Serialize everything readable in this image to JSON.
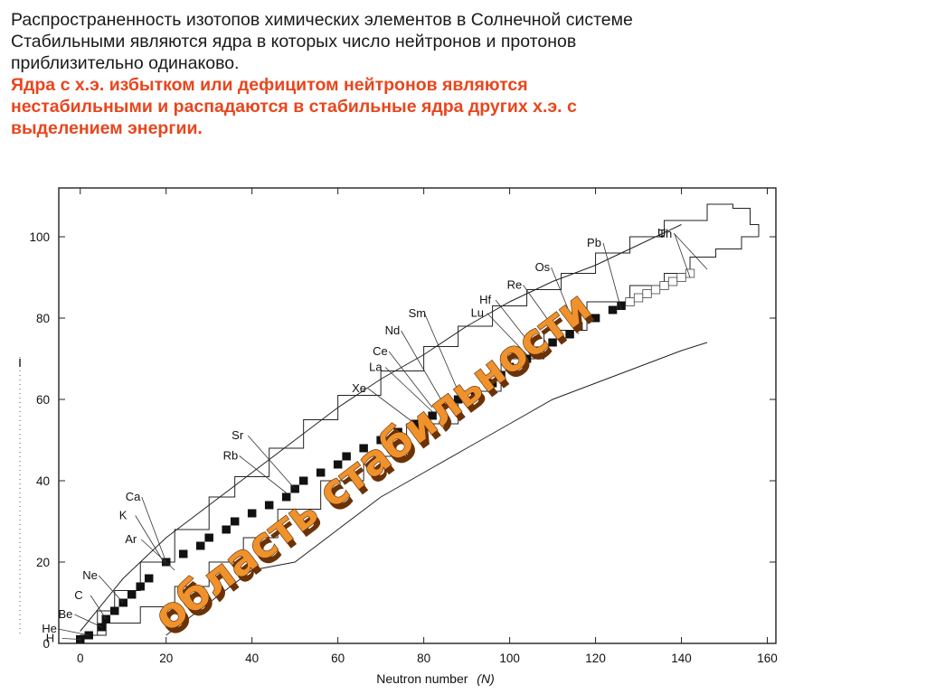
{
  "header": {
    "line1": "Распространенность изотопов химических элементов в Солнечной системе",
    "line2": "Стабильными являются ядра в которых число нейтронов и протонов",
    "line3": "приблизительно одинаково.",
    "red_line1": "Ядра с х.э. избытком или дефицитом нейтронов являются",
    "red_line2": "нестабильными и распадаются в стабильные ядра других х.э. с",
    "red_line3": "выделением энергии.",
    "red_color": "#e8461e"
  },
  "chart_data": {
    "type": "scatter",
    "xlabel": "Neutron number",
    "xlabel_symbol": "N",
    "ylabel": "",
    "xlim": [
      -5,
      162
    ],
    "ylim": [
      0,
      112
    ],
    "x_ticks": [
      0,
      20,
      40,
      60,
      80,
      100,
      120,
      140,
      160
    ],
    "y_ticks": [
      0,
      20,
      40,
      60,
      80,
      100
    ],
    "overlay_text": "область стабильности",
    "overlay_color": "#f0922c",
    "element_labels": [
      {
        "name": "H",
        "n": 0,
        "z": 1
      },
      {
        "name": "He",
        "n": 2,
        "z": 2
      },
      {
        "name": "Be",
        "n": 5,
        "z": 4
      },
      {
        "name": "C",
        "n": 6,
        "z": 6
      },
      {
        "name": "Ne",
        "n": 10,
        "z": 10
      },
      {
        "name": "Ar",
        "n": 22,
        "z": 18
      },
      {
        "name": "K",
        "n": 20,
        "z": 19
      },
      {
        "name": "Ca",
        "n": 20,
        "z": 20
      },
      {
        "name": "Rb",
        "n": 48,
        "z": 37
      },
      {
        "name": "Sr",
        "n": 50,
        "z": 38
      },
      {
        "name": "Xe",
        "n": 78,
        "z": 54
      },
      {
        "name": "La",
        "n": 82,
        "z": 57
      },
      {
        "name": "Ce",
        "n": 82,
        "z": 58
      },
      {
        "name": "Nd",
        "n": 84,
        "z": 60
      },
      {
        "name": "Sm",
        "n": 88,
        "z": 62
      },
      {
        "name": "Lu",
        "n": 104,
        "z": 71
      },
      {
        "name": "Hf",
        "n": 106,
        "z": 72
      },
      {
        "name": "Re",
        "n": 112,
        "z": 75
      },
      {
        "name": "Os",
        "n": 116,
        "z": 76
      },
      {
        "name": "Pb",
        "n": 126,
        "z": 82
      },
      {
        "name": "U",
        "n": 146,
        "z": 92
      },
      {
        "name": "Th",
        "n": 142,
        "z": 90
      }
    ],
    "stable_band": [
      {
        "n": 0,
        "z": 1
      },
      {
        "n": 2,
        "z": 2
      },
      {
        "n": 5,
        "z": 4
      },
      {
        "n": 6,
        "z": 6
      },
      {
        "n": 8,
        "z": 8
      },
      {
        "n": 10,
        "z": 10
      },
      {
        "n": 12,
        "z": 12
      },
      {
        "n": 14,
        "z": 14
      },
      {
        "n": 16,
        "z": 16
      },
      {
        "n": 20,
        "z": 20
      },
      {
        "n": 24,
        "z": 22
      },
      {
        "n": 28,
        "z": 24
      },
      {
        "n": 30,
        "z": 26
      },
      {
        "n": 34,
        "z": 28
      },
      {
        "n": 36,
        "z": 30
      },
      {
        "n": 40,
        "z": 32
      },
      {
        "n": 44,
        "z": 34
      },
      {
        "n": 48,
        "z": 36
      },
      {
        "n": 50,
        "z": 38
      },
      {
        "n": 52,
        "z": 40
      },
      {
        "n": 56,
        "z": 42
      },
      {
        "n": 60,
        "z": 44
      },
      {
        "n": 62,
        "z": 46
      },
      {
        "n": 66,
        "z": 48
      },
      {
        "n": 70,
        "z": 50
      },
      {
        "n": 74,
        "z": 52
      },
      {
        "n": 78,
        "z": 54
      },
      {
        "n": 82,
        "z": 56
      },
      {
        "n": 84,
        "z": 58
      },
      {
        "n": 88,
        "z": 60
      },
      {
        "n": 92,
        "z": 62
      },
      {
        "n": 96,
        "z": 64
      },
      {
        "n": 98,
        "z": 66
      },
      {
        "n": 100,
        "z": 68
      },
      {
        "n": 104,
        "z": 70
      },
      {
        "n": 106,
        "z": 72
      },
      {
        "n": 110,
        "z": 74
      },
      {
        "n": 114,
        "z": 76
      },
      {
        "n": 116,
        "z": 78
      },
      {
        "n": 120,
        "z": 80
      },
      {
        "n": 124,
        "z": 82
      },
      {
        "n": 126,
        "z": 83
      }
    ],
    "unstable_cells": [
      {
        "n": 128,
        "z": 84
      },
      {
        "n": 130,
        "z": 85
      },
      {
        "n": 132,
        "z": 86
      },
      {
        "n": 134,
        "z": 87
      },
      {
        "n": 136,
        "z": 88
      },
      {
        "n": 138,
        "z": 89
      },
      {
        "n": 140,
        "z": 90
      },
      {
        "n": 142,
        "z": 91
      }
    ],
    "known_region_upper": [
      {
        "n": 0,
        "z": 2
      },
      {
        "n": 4,
        "z": 8
      },
      {
        "n": 8,
        "z": 13
      },
      {
        "n": 14,
        "z": 20
      },
      {
        "n": 22,
        "z": 28
      },
      {
        "n": 30,
        "z": 36
      },
      {
        "n": 36,
        "z": 41
      },
      {
        "n": 44,
        "z": 48
      },
      {
        "n": 52,
        "z": 55
      },
      {
        "n": 60,
        "z": 61
      },
      {
        "n": 70,
        "z": 67
      },
      {
        "n": 80,
        "z": 73
      },
      {
        "n": 88,
        "z": 78
      },
      {
        "n": 96,
        "z": 83
      },
      {
        "n": 104,
        "z": 87
      },
      {
        "n": 112,
        "z": 91
      },
      {
        "n": 120,
        "z": 96
      },
      {
        "n": 128,
        "z": 100
      },
      {
        "n": 136,
        "z": 104
      },
      {
        "n": 146,
        "z": 108
      },
      {
        "n": 152,
        "z": 107
      },
      {
        "n": 156,
        "z": 103
      },
      {
        "n": 158,
        "z": 100
      }
    ],
    "known_region_lower": [
      {
        "n": 158,
        "z": 100
      },
      {
        "n": 154,
        "z": 97
      },
      {
        "n": 148,
        "z": 95
      },
      {
        "n": 142,
        "z": 91
      },
      {
        "n": 136,
        "z": 88
      },
      {
        "n": 128,
        "z": 84
      },
      {
        "n": 118,
        "z": 77
      },
      {
        "n": 108,
        "z": 70
      },
      {
        "n": 98,
        "z": 62
      },
      {
        "n": 88,
        "z": 54
      },
      {
        "n": 76,
        "z": 46
      },
      {
        "n": 66,
        "z": 40
      },
      {
        "n": 56,
        "z": 33
      },
      {
        "n": 46,
        "z": 26
      },
      {
        "n": 38,
        "z": 20
      },
      {
        "n": 30,
        "z": 14
      },
      {
        "n": 22,
        "z": 9
      },
      {
        "n": 14,
        "z": 5
      },
      {
        "n": 6,
        "z": 2
      },
      {
        "n": 0,
        "z": 1
      }
    ],
    "outer_upper_line": [
      {
        "n": 0,
        "z": 3
      },
      {
        "n": 10,
        "z": 16
      },
      {
        "n": 20,
        "z": 26
      },
      {
        "n": 30,
        "z": 34
      },
      {
        "n": 40,
        "z": 42
      },
      {
        "n": 50,
        "z": 50
      },
      {
        "n": 60,
        "z": 58
      },
      {
        "n": 70,
        "z": 65
      },
      {
        "n": 80,
        "z": 71
      },
      {
        "n": 90,
        "z": 78
      },
      {
        "n": 100,
        "z": 84
      },
      {
        "n": 110,
        "z": 89
      },
      {
        "n": 120,
        "z": 93
      },
      {
        "n": 130,
        "z": 98
      },
      {
        "n": 140,
        "z": 103
      }
    ],
    "outer_lower_line": [
      {
        "n": 20,
        "z": 2
      },
      {
        "n": 30,
        "z": 10
      },
      {
        "n": 40,
        "z": 18
      },
      {
        "n": 50,
        "z": 20
      },
      {
        "n": 60,
        "z": 28
      },
      {
        "n": 70,
        "z": 36
      },
      {
        "n": 80,
        "z": 42
      },
      {
        "n": 90,
        "z": 48
      },
      {
        "n": 100,
        "z": 54
      },
      {
        "n": 110,
        "z": 60
      },
      {
        "n": 120,
        "z": 64
      },
      {
        "n": 130,
        "z": 68
      },
      {
        "n": 140,
        "z": 72
      },
      {
        "n": 146,
        "z": 74
      }
    ]
  }
}
